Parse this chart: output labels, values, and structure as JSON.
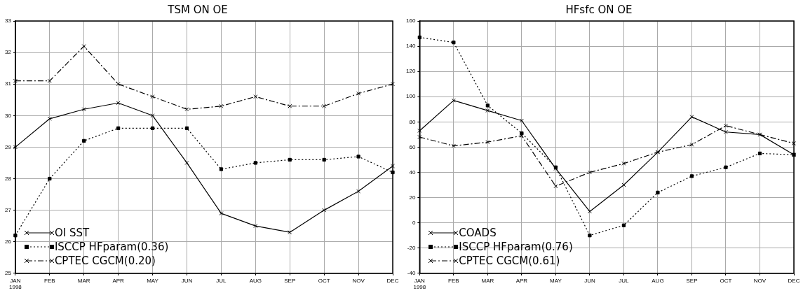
{
  "chart_data": [
    {
      "type": "line",
      "title": "TSM ON OE",
      "categories": [
        "JAN\n1998",
        "FEB",
        "MAR",
        "APR",
        "MAY",
        "JUN",
        "JUL",
        "AUG",
        "SEP",
        "OCT",
        "NOV",
        "DEC"
      ],
      "ylim": [
        25,
        33
      ],
      "yticks": [
        25,
        26,
        27,
        28,
        29,
        30,
        31,
        32,
        33
      ],
      "grid": true,
      "legend": "bottom left",
      "series": [
        {
          "name": "OI SST",
          "color": "#000000",
          "marker": "cross",
          "line_style": "solid",
          "values": [
            29.0,
            29.9,
            30.2,
            30.4,
            30.0,
            28.5,
            26.9,
            26.5,
            26.3,
            27.0,
            27.6,
            28.4
          ]
        },
        {
          "name": "ISCCP HFparam(0.36)",
          "color": "#000000",
          "marker": "square",
          "line_style": "dotted",
          "values": [
            26.2,
            28.0,
            29.2,
            29.6,
            29.6,
            29.6,
            28.3,
            28.5,
            28.6,
            28.6,
            28.7,
            28.2
          ]
        },
        {
          "name": "CPTEC CGCM(0.20)",
          "color": "#000000",
          "marker": "cross",
          "line_style": "dashed",
          "values": [
            31.1,
            31.1,
            32.2,
            31.0,
            30.6,
            30.2,
            30.3,
            30.6,
            30.3,
            30.3,
            30.7,
            31.0
          ]
        }
      ]
    },
    {
      "type": "line",
      "title": "HFsfc ON OE",
      "categories": [
        "JAN\n1998",
        "FEB",
        "MAR",
        "APR",
        "MAY",
        "JUN",
        "JUL",
        "AUG",
        "SEP",
        "OCT",
        "NOV",
        "DEC"
      ],
      "ylim": [
        -40,
        160
      ],
      "yticks": [
        -40,
        -20,
        0,
        20,
        40,
        60,
        80,
        100,
        120,
        140,
        160
      ],
      "grid": true,
      "legend": "bottom left",
      "series": [
        {
          "name": "COADS",
          "color": "#000000",
          "marker": "cross",
          "line_style": "solid",
          "values": [
            73,
            97,
            89,
            81,
            43,
            9,
            30,
            56,
            84,
            72,
            70,
            54
          ]
        },
        {
          "name": "ISCCP HFparam(0.76)",
          "color": "#000000",
          "marker": "square",
          "line_style": "dotted",
          "values": [
            147,
            143,
            93,
            71,
            44,
            -10,
            -2,
            24,
            37,
            44,
            55,
            54
          ]
        },
        {
          "name": "CPTEC CGCM(0.61)",
          "color": "#000000",
          "marker": "cross",
          "line_style": "dashed",
          "values": [
            68,
            61,
            64,
            69,
            29,
            40,
            47,
            56,
            62,
            77,
            70,
            63
          ]
        }
      ]
    }
  ]
}
